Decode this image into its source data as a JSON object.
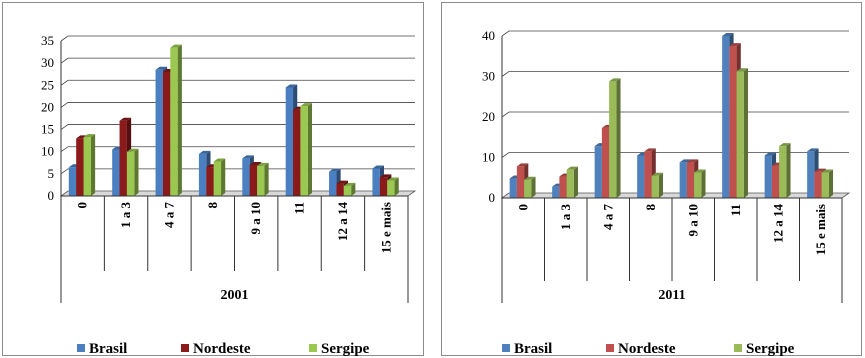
{
  "chart_data": [
    {
      "type": "bar",
      "xlabel": "2001",
      "categories": [
        "0",
        "1 a 3",
        "4 a 7",
        "8",
        "9 a 10",
        "11",
        "12 a 14",
        "15 e mais"
      ],
      "ylim": [
        0,
        35
      ],
      "yticks": [
        0,
        5,
        10,
        15,
        20,
        25,
        30,
        35
      ],
      "grid": true,
      "legend_position": "bottom",
      "series": [
        {
          "name": "Brasil",
          "color": "#4a7fc1",
          "values": [
            6.5,
            10.5,
            28.5,
            9.5,
            8.5,
            24.5,
            5.5,
            6.2
          ]
        },
        {
          "name": "Nordeste",
          "color": "#8b1a1a",
          "values": [
            13,
            17,
            28,
            6.5,
            7,
            19.5,
            2.8,
            4.2
          ]
        },
        {
          "name": "Sergipe",
          "color": "#9bc850",
          "values": [
            13.3,
            10,
            33.5,
            7.8,
            6.8,
            20.3,
            2.3,
            3.5
          ]
        }
      ]
    },
    {
      "type": "bar",
      "xlabel": "2011",
      "categories": [
        "0",
        "1 a 3",
        "4 a 7",
        "8",
        "9 a 10",
        "11",
        "12 a 14",
        "15 e mais"
      ],
      "ylim": [
        0,
        40
      ],
      "yticks": [
        0,
        10,
        20,
        30,
        40
      ],
      "grid": true,
      "legend_position": "bottom",
      "series": [
        {
          "name": "Brasil",
          "color": "#4f81bd",
          "values": [
            4.8,
            2.8,
            12.8,
            10.5,
            8.8,
            40,
            10.5,
            11.5
          ]
        },
        {
          "name": "Nordeste",
          "color": "#c0504d",
          "values": [
            7.8,
            5.3,
            17.3,
            11.5,
            8.8,
            37.5,
            8,
            6.5
          ]
        },
        {
          "name": "Sergipe",
          "color": "#9bbb59",
          "values": [
            4.5,
            7,
            28.8,
            5.5,
            6.3,
            31.3,
            12.8,
            6.3
          ]
        }
      ]
    }
  ]
}
